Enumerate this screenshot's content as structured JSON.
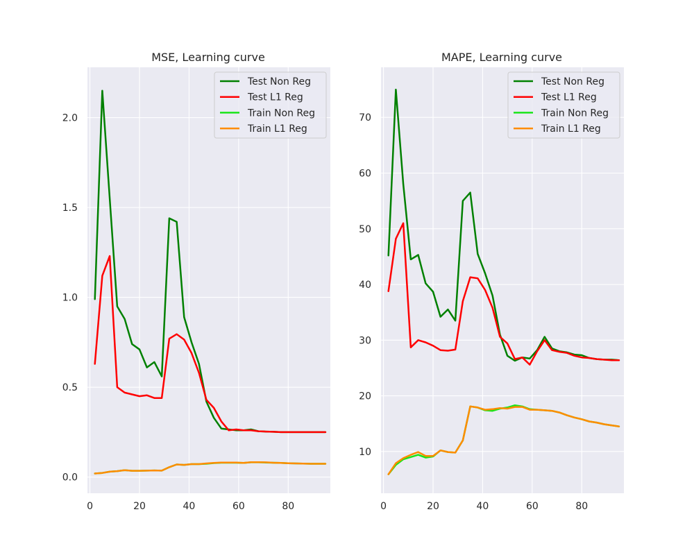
{
  "chart_data": [
    {
      "type": "line",
      "title": "MSE, Learning curve",
      "xlim": [
        -1,
        97
      ],
      "ylim": [
        -0.09,
        2.28
      ],
      "xticks": [
        0,
        20,
        40,
        60,
        80
      ],
      "yticks": [
        0.0,
        0.5,
        1.0,
        1.5,
        2.0
      ],
      "ytick_labels": [
        "0.0",
        "0.5",
        "1.0",
        "1.5",
        "2.0"
      ],
      "grid": true,
      "legend_position": "top-right",
      "x": [
        2,
        5,
        8,
        11,
        14,
        17,
        20,
        23,
        26,
        29,
        32,
        35,
        38,
        41,
        44,
        47,
        50,
        53,
        56,
        59,
        62,
        65,
        68,
        71,
        74,
        77,
        80,
        83,
        86,
        89,
        92,
        95
      ],
      "series": [
        {
          "name": "Test Non Reg",
          "color": "#008000",
          "values": [
            0.99,
            2.15,
            1.55,
            0.95,
            0.88,
            0.74,
            0.71,
            0.61,
            0.64,
            0.56,
            1.44,
            1.42,
            0.89,
            0.75,
            0.63,
            0.42,
            0.33,
            0.27,
            0.265,
            0.26,
            0.26,
            0.265,
            0.255,
            0.253,
            0.252,
            0.25,
            0.25,
            0.25,
            0.25,
            0.25,
            0.25,
            0.25
          ]
        },
        {
          "name": "Test L1 Reg",
          "color": "#ff0000",
          "values": [
            0.63,
            1.12,
            1.23,
            0.5,
            0.47,
            0.46,
            0.45,
            0.455,
            0.44,
            0.44,
            0.77,
            0.795,
            0.765,
            0.69,
            0.58,
            0.43,
            0.385,
            0.31,
            0.26,
            0.265,
            0.26,
            0.26,
            0.255,
            0.253,
            0.252,
            0.25,
            0.25,
            0.25,
            0.25,
            0.25,
            0.25,
            0.25
          ]
        },
        {
          "name": "Train Non Reg",
          "color": "#1ae51a",
          "values": [
            0.02,
            0.023,
            0.03,
            0.033,
            0.038,
            0.035,
            0.035,
            0.036,
            0.037,
            0.036,
            0.055,
            0.07,
            0.068,
            0.072,
            0.072,
            0.074,
            0.078,
            0.08,
            0.08,
            0.08,
            0.079,
            0.082,
            0.082,
            0.081,
            0.08,
            0.079,
            0.077,
            0.076,
            0.075,
            0.074,
            0.074,
            0.074
          ]
        },
        {
          "name": "Train L1 Reg",
          "color": "#ff8c00",
          "values": [
            0.02,
            0.023,
            0.03,
            0.033,
            0.038,
            0.035,
            0.035,
            0.036,
            0.037,
            0.036,
            0.055,
            0.07,
            0.068,
            0.072,
            0.072,
            0.076,
            0.079,
            0.081,
            0.081,
            0.081,
            0.079,
            0.083,
            0.083,
            0.082,
            0.08,
            0.079,
            0.077,
            0.076,
            0.075,
            0.074,
            0.074,
            0.074
          ]
        }
      ]
    },
    {
      "type": "line",
      "title": "MAPE, Learning curve",
      "xlim": [
        -1,
        97
      ],
      "ylim": [
        2.5,
        79
      ],
      "xticks": [
        0,
        20,
        40,
        60,
        80
      ],
      "yticks": [
        10,
        20,
        30,
        40,
        50,
        60,
        70
      ],
      "ytick_labels": [
        "10",
        "20",
        "30",
        "40",
        "50",
        "60",
        "70"
      ],
      "grid": true,
      "legend_position": "top-right",
      "x": [
        2,
        5,
        8,
        11,
        14,
        17,
        20,
        23,
        26,
        29,
        32,
        35,
        38,
        41,
        44,
        47,
        50,
        53,
        56,
        59,
        62,
        65,
        68,
        71,
        74,
        77,
        80,
        83,
        86,
        89,
        92,
        95
      ],
      "series": [
        {
          "name": "Test Non Reg",
          "color": "#008000",
          "values": [
            45.2,
            75.0,
            58.0,
            44.5,
            45.3,
            40.2,
            38.7,
            34.2,
            35.5,
            33.5,
            55.0,
            56.5,
            45.5,
            42.0,
            38.0,
            31.0,
            27.2,
            26.3,
            26.9,
            26.7,
            28.2,
            30.6,
            28.5,
            28.0,
            27.8,
            27.4,
            27.3,
            26.8,
            26.6,
            26.5,
            26.5,
            26.4
          ]
        },
        {
          "name": "Test L1 Reg",
          "color": "#ff0000",
          "values": [
            38.8,
            48.2,
            51.0,
            28.7,
            30.0,
            29.6,
            29.0,
            28.2,
            28.1,
            28.3,
            37.0,
            41.3,
            41.1,
            39.0,
            35.8,
            30.6,
            29.4,
            26.6,
            26.9,
            25.6,
            28.0,
            30.0,
            28.2,
            27.9,
            27.7,
            27.2,
            26.9,
            26.8,
            26.6,
            26.5,
            26.4,
            26.4
          ]
        },
        {
          "name": "Train Non Reg",
          "color": "#1ae51a",
          "values": [
            5.9,
            7.6,
            8.6,
            9.0,
            9.4,
            8.9,
            9.1,
            10.2,
            9.9,
            9.8,
            12.0,
            18.1,
            17.9,
            17.4,
            17.3,
            17.7,
            17.9,
            18.3,
            18.1,
            17.6,
            17.5,
            17.4,
            17.3,
            17.0,
            16.5,
            16.1,
            15.8,
            15.4,
            15.2,
            14.9,
            14.7,
            14.5
          ]
        },
        {
          "name": "Train L1 Reg",
          "color": "#ff8c00",
          "values": [
            5.9,
            7.9,
            8.8,
            9.4,
            9.9,
            9.2,
            9.2,
            10.2,
            9.9,
            9.8,
            12.0,
            18.1,
            17.9,
            17.5,
            17.6,
            17.8,
            17.7,
            18.0,
            18.0,
            17.5,
            17.5,
            17.4,
            17.3,
            17.0,
            16.5,
            16.1,
            15.8,
            15.4,
            15.2,
            14.9,
            14.7,
            14.5
          ]
        }
      ]
    }
  ]
}
